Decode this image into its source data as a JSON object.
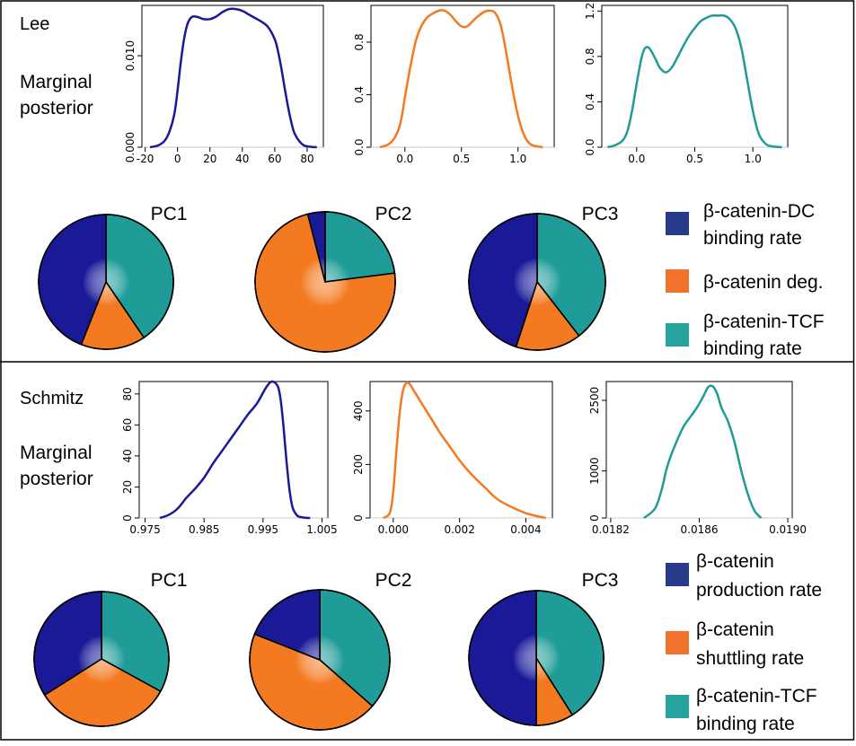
{
  "colors": {
    "blue": "#1a1a99",
    "orange": "#f47a22",
    "teal": "#1f9c98",
    "legend_blue": "#283a8c",
    "legend_orange": "#f2712b",
    "legend_teal": "#25a39d",
    "frame": "#000000"
  },
  "panels": [
    {
      "name": "Lee",
      "marginal_label_1": "Marginal",
      "marginal_label_2": "posterior",
      "legend": [
        {
          "line1": "β-catenin-DC",
          "line2": "binding rate",
          "color": "#283a8c"
        },
        {
          "line1": "β-catenin deg.",
          "line2": "",
          "color": "#f2712b"
        },
        {
          "line1": "β-catenin-TCF",
          "line2": "binding rate",
          "color": "#25a39d"
        }
      ]
    },
    {
      "name": "Schmitz",
      "marginal_label_1": "Marginal",
      "marginal_label_2": "posterior",
      "legend": [
        {
          "line1": "β-catenin",
          "line2": "production rate",
          "color": "#283a8c"
        },
        {
          "line1": "β-catenin",
          "line2": "shuttling rate",
          "color": "#f2712b"
        },
        {
          "line1": "β-catenin-TCF",
          "line2": "binding rate",
          "color": "#25a39d"
        }
      ]
    }
  ],
  "chart_data": [
    {
      "type": "line",
      "panel": "Lee",
      "color": "#1a1a99",
      "xlim": [
        -22,
        90
      ],
      "ylim": [
        0,
        0.0155
      ],
      "xticks": [
        -20,
        0,
        20,
        40,
        60,
        80
      ],
      "xticklabels": [
        "-20",
        "0",
        "20",
        "40",
        "60",
        "80"
      ],
      "yticks": [
        0.0,
        0.01
      ],
      "yticklabels": [
        "0.000",
        "0.010"
      ],
      "x": [
        -17,
        -12,
        -8,
        -5,
        -2,
        0,
        2,
        4,
        6,
        8,
        10,
        13,
        16,
        20,
        24,
        28,
        32,
        36,
        40,
        44,
        48,
        52,
        56,
        60,
        62,
        64,
        66,
        68,
        70,
        72,
        75,
        78,
        82,
        86
      ],
      "y": [
        0,
        0.0002,
        0.0007,
        0.0017,
        0.0036,
        0.0062,
        0.0093,
        0.0118,
        0.0134,
        0.0141,
        0.0143,
        0.0142,
        0.014,
        0.014,
        0.0143,
        0.0148,
        0.0151,
        0.0151,
        0.0149,
        0.0145,
        0.0141,
        0.0137,
        0.0131,
        0.0118,
        0.0105,
        0.0087,
        0.0066,
        0.0046,
        0.0029,
        0.0016,
        0.0007,
        0.0002,
        5e-05,
        0
      ]
    },
    {
      "type": "line",
      "panel": "Lee",
      "color": "#f47a22",
      "xlim": [
        -0.3,
        1.32
      ],
      "ylim": [
        0,
        1.08
      ],
      "xticks": [
        0.0,
        0.5,
        1.0
      ],
      "xticklabels": [
        "0.0",
        "0.5",
        "1.0"
      ],
      "yticks": [
        0.0,
        0.4,
        0.8
      ],
      "yticklabels": [
        "0.0",
        "0.4",
        "0.8"
      ],
      "x": [
        -0.22,
        -0.15,
        -0.1,
        -0.05,
        -0.02,
        0.0,
        0.05,
        0.1,
        0.15,
        0.2,
        0.25,
        0.3,
        0.35,
        0.4,
        0.45,
        0.5,
        0.55,
        0.6,
        0.65,
        0.7,
        0.75,
        0.8,
        0.85,
        0.9,
        0.95,
        1.0,
        1.05,
        1.1,
        1.15,
        1.22
      ],
      "y": [
        0,
        0.02,
        0.06,
        0.15,
        0.27,
        0.38,
        0.62,
        0.82,
        0.93,
        0.99,
        1.02,
        1.04,
        1.04,
        1.01,
        0.96,
        0.92,
        0.92,
        0.96,
        1.0,
        1.03,
        1.04,
        1.02,
        0.92,
        0.7,
        0.45,
        0.24,
        0.1,
        0.03,
        0.01,
        0
      ]
    },
    {
      "type": "line",
      "panel": "Lee",
      "color": "#1f9c98",
      "xlim": [
        -0.3,
        1.3
      ],
      "ylim": [
        0,
        1.25
      ],
      "xticks": [
        0.0,
        0.5,
        1.0
      ],
      "xticklabels": [
        "0.0",
        "0.5",
        "1.0"
      ],
      "yticks": [
        0.0,
        0.4,
        0.8,
        1.2
      ],
      "yticklabels": [
        "0.0",
        "0.4",
        "0.8",
        "1.2"
      ],
      "x": [
        -0.25,
        -0.18,
        -0.12,
        -0.08,
        -0.04,
        0.0,
        0.04,
        0.07,
        0.1,
        0.13,
        0.17,
        0.2,
        0.25,
        0.3,
        0.35,
        0.4,
        0.45,
        0.5,
        0.55,
        0.6,
        0.65,
        0.7,
        0.75,
        0.8,
        0.85,
        0.9,
        0.95,
        1.0,
        1.05,
        1.1,
        1.15,
        1.25
      ],
      "y": [
        0,
        0.02,
        0.06,
        0.14,
        0.32,
        0.56,
        0.78,
        0.87,
        0.88,
        0.84,
        0.76,
        0.7,
        0.66,
        0.7,
        0.79,
        0.89,
        0.98,
        1.05,
        1.11,
        1.14,
        1.16,
        1.16,
        1.16,
        1.13,
        1.05,
        0.88,
        0.6,
        0.32,
        0.12,
        0.04,
        0.01,
        0
      ]
    },
    {
      "type": "line",
      "panel": "Schmitz",
      "color": "#1a1a99",
      "xlim": [
        0.974,
        1.006
      ],
      "ylim": [
        0,
        88
      ],
      "xticks": [
        0.975,
        0.985,
        0.995,
        1.005
      ],
      "xticklabels": [
        "0.975",
        "0.985",
        "0.995",
        "1.005"
      ],
      "yticks": [
        0,
        20,
        40,
        60,
        80
      ],
      "yticklabels": [
        "0",
        "20",
        "40",
        "60",
        "80"
      ],
      "x": [
        0.9775,
        0.979,
        0.9805,
        0.982,
        0.9835,
        0.985,
        0.9865,
        0.988,
        0.9895,
        0.991,
        0.9925,
        0.994,
        0.9955,
        0.9965,
        0.9975,
        0.998,
        0.9985,
        0.999,
        0.9995,
        1.0,
        1.0005,
        1.001,
        1.002,
        1.003
      ],
      "y": [
        0,
        2,
        6,
        13,
        19,
        26,
        35,
        43,
        51,
        59,
        67,
        74,
        84,
        88,
        85,
        76,
        58,
        36,
        18,
        7,
        3,
        1,
        0.2,
        0
      ]
    },
    {
      "type": "line",
      "panel": "Schmitz",
      "color": "#f47a22",
      "xlim": [
        -0.0007,
        0.0048
      ],
      "ylim": [
        0,
        510
      ],
      "xticks": [
        0.0,
        0.002,
        0.004
      ],
      "xticklabels": [
        "0.000",
        "0.002",
        "0.004"
      ],
      "yticks": [
        0,
        200,
        400
      ],
      "yticklabels": [
        "0",
        "200",
        "400"
      ],
      "x": [
        -0.0003,
        -0.0001,
        0.0,
        0.0001,
        0.0002,
        0.0003,
        0.0004,
        0.0005,
        0.0006,
        0.0008,
        0.001,
        0.0012,
        0.0014,
        0.0016,
        0.0018,
        0.002,
        0.0022,
        0.0025,
        0.0028,
        0.003,
        0.0032,
        0.0035,
        0.0038,
        0.004,
        0.0043,
        0.0046
      ],
      "y": [
        0,
        20,
        100,
        260,
        400,
        480,
        505,
        500,
        480,
        440,
        400,
        360,
        320,
        285,
        250,
        215,
        185,
        145,
        110,
        85,
        65,
        45,
        28,
        18,
        8,
        0
      ]
    },
    {
      "type": "line",
      "panel": "Schmitz",
      "color": "#1f9c98",
      "xlim": [
        0.01818,
        0.01902
      ],
      "ylim": [
        0,
        2900
      ],
      "xticks": [
        0.0182,
        0.0186,
        0.019
      ],
      "xticklabels": [
        "0.0182",
        "0.0186",
        "0.0190"
      ],
      "yticks": [
        0,
        1000,
        2500
      ],
      "yticklabels": [
        "0",
        "1000",
        "2500"
      ],
      "x": [
        0.01835,
        0.0184,
        0.01843,
        0.01845,
        0.01847,
        0.0185,
        0.01853,
        0.01856,
        0.01859,
        0.01862,
        0.01864,
        0.01866,
        0.01868,
        0.0187,
        0.01873,
        0.01876,
        0.01879,
        0.01882,
        0.01885,
        0.01888
      ],
      "y": [
        0,
        200,
        600,
        1000,
        1300,
        1650,
        1950,
        2150,
        2350,
        2600,
        2780,
        2800,
        2650,
        2350,
        2050,
        1600,
        1000,
        500,
        150,
        0
      ]
    },
    {
      "type": "pie",
      "panel": "Lee",
      "title": "PC1",
      "start_deg": 0,
      "slices": [
        {
          "label": "β-catenin-TCF binding rate",
          "value": 0.405,
          "color": "#1f9c98"
        },
        {
          "label": "β-catenin deg.",
          "value": 0.155,
          "color": "#f47a22"
        },
        {
          "label": "β-catenin-DC binding rate",
          "value": 0.44,
          "color": "#1a1a99"
        }
      ]
    },
    {
      "type": "pie",
      "panel": "Lee",
      "title": "PC2",
      "start_deg": 0,
      "slices": [
        {
          "label": "β-catenin-TCF binding rate",
          "value": 0.23,
          "color": "#1f9c98"
        },
        {
          "label": "β-catenin deg.",
          "value": 0.73,
          "color": "#f47a22"
        },
        {
          "label": "β-catenin-DC binding rate",
          "value": 0.04,
          "color": "#1a1a99"
        }
      ]
    },
    {
      "type": "pie",
      "panel": "Lee",
      "title": "PC3",
      "start_deg": 0,
      "slices": [
        {
          "label": "β-catenin-TCF binding rate",
          "value": 0.395,
          "color": "#1f9c98"
        },
        {
          "label": "β-catenin deg.",
          "value": 0.155,
          "color": "#f47a22"
        },
        {
          "label": "β-catenin-DC binding rate",
          "value": 0.45,
          "color": "#1a1a99"
        }
      ]
    },
    {
      "type": "pie",
      "panel": "Schmitz",
      "title": "PC1",
      "start_deg": 0,
      "slices": [
        {
          "label": "β-catenin-TCF binding rate",
          "value": 0.33,
          "color": "#1f9c98"
        },
        {
          "label": "β-catenin shuttling rate",
          "value": 0.33,
          "color": "#f47a22"
        },
        {
          "label": "β-catenin production rate",
          "value": 0.34,
          "color": "#1a1a99"
        }
      ]
    },
    {
      "type": "pie",
      "panel": "Schmitz",
      "title": "PC2",
      "start_deg": 0,
      "slices": [
        {
          "label": "β-catenin-TCF binding rate",
          "value": 0.365,
          "color": "#1f9c98"
        },
        {
          "label": "β-catenin shuttling rate",
          "value": 0.445,
          "color": "#f47a22"
        },
        {
          "label": "β-catenin production rate",
          "value": 0.19,
          "color": "#1a1a99"
        }
      ]
    },
    {
      "type": "pie",
      "panel": "Schmitz",
      "title": "PC3",
      "start_deg": 0,
      "slices": [
        {
          "label": "β-catenin-TCF binding rate",
          "value": 0.41,
          "color": "#1f9c98"
        },
        {
          "label": "β-catenin shuttling rate",
          "value": 0.09,
          "color": "#f47a22"
        },
        {
          "label": "β-catenin production rate",
          "value": 0.5,
          "color": "#1a1a99"
        }
      ]
    }
  ]
}
